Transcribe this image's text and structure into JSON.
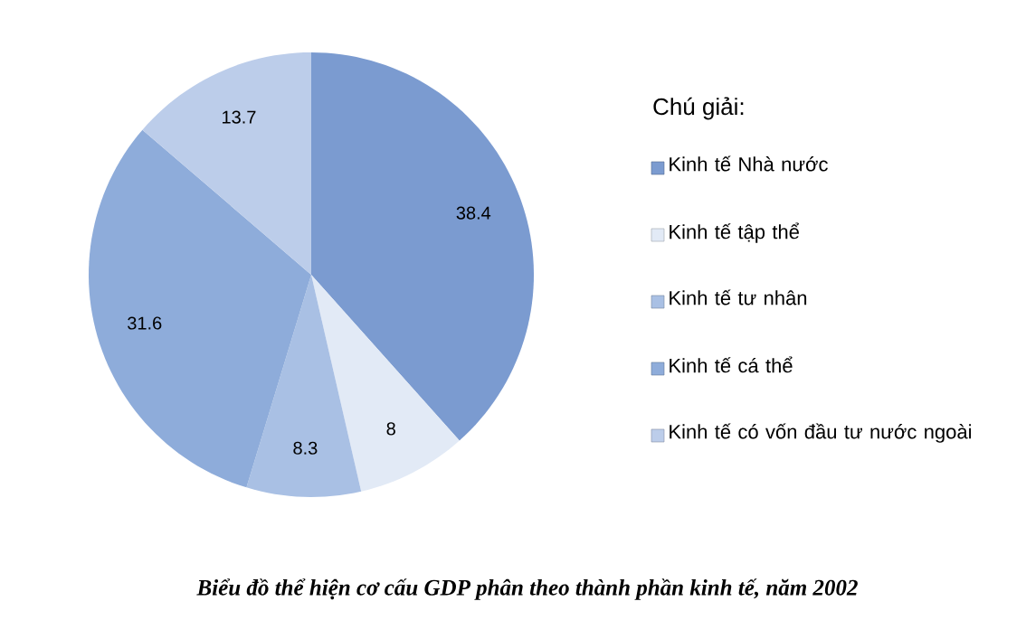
{
  "chart_data": {
    "type": "pie",
    "title": "Biểu đồ thể hiện cơ cấu GDP phân theo thành phần kinh tế, năm 2002",
    "legend_title": "Chú giải:",
    "legend": "right",
    "data_labels": true,
    "categories": [
      "Kinh tế Nhà nước",
      "Kinh tế tập thể",
      "Kinh tế tư nhân",
      "Kinh tế cá thể",
      "Kinh tế có vốn đầu tư nước ngoài"
    ],
    "values": [
      38.4,
      8,
      8.3,
      31.6,
      13.7
    ],
    "colors": [
      "#7b9bd0",
      "#e2eaf6",
      "#a9c0e4",
      "#8eacda",
      "#bccdea"
    ]
  }
}
